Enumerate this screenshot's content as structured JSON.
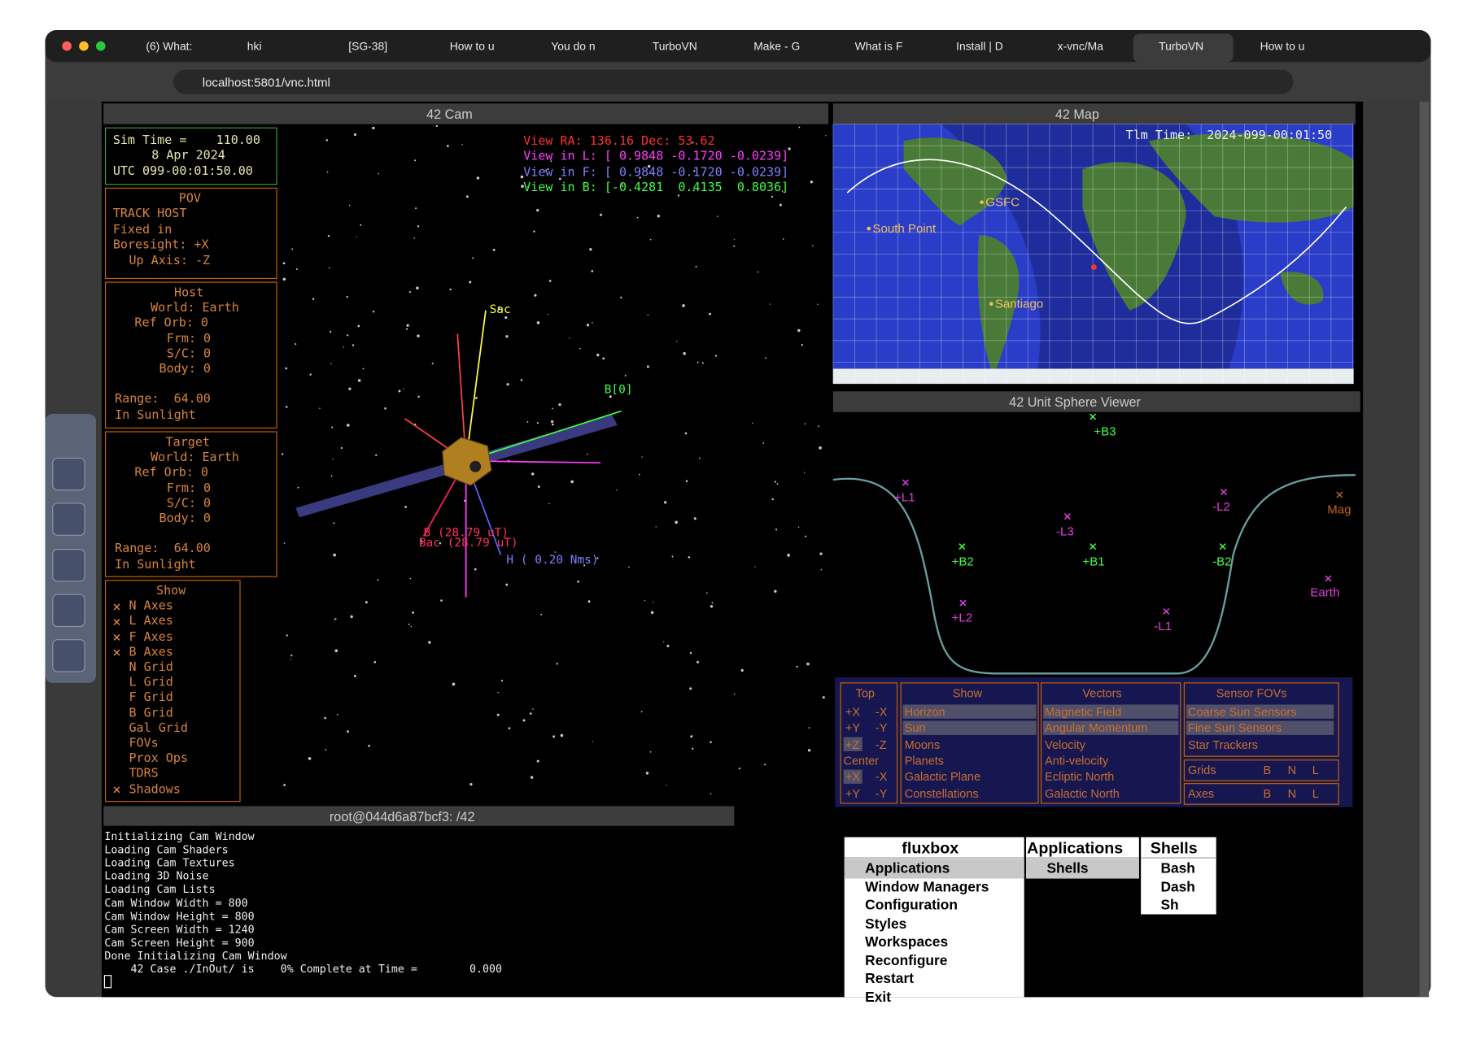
{
  "browser": {
    "tabs": [
      "(6) What:",
      "hki",
      "[SG-38]",
      "How to u",
      "You do n",
      "TurboVN",
      "Make - G",
      "What is F",
      "Install | D",
      "x-vnc/Ma",
      "TurboVN",
      "How to u"
    ],
    "url": "localhost:5801/vnc.html"
  },
  "cam": {
    "title": "42 Cam",
    "sim": [
      "Sim Time =    110.00",
      "8 Apr 2024",
      "UTC 099-00:01:50.00"
    ],
    "pov": [
      "POV",
      "TRACK HOST",
      "Fixed in",
      "Boresight: +X",
      "Up Axis: -Z"
    ],
    "host": [
      "Host",
      "World: Earth",
      "Ref Orb: 0",
      "Frm: 0",
      "S/C: 0",
      "Body: 0",
      "Range:  64.00",
      "In Sunlight"
    ],
    "target": [
      "Target",
      "World: Earth",
      "Ref Orb: 0",
      "Frm: 0",
      "S/C: 0",
      "Body: 0",
      "Range:  64.00",
      "In Sunlight"
    ],
    "show": [
      "Show",
      "N Axes",
      "L Axes",
      "F Axes",
      "B Axes",
      "N Grid",
      "L Grid",
      "F Grid",
      "B Grid",
      "Gal Grid",
      "FOVs",
      "Prox Ops",
      "TDRS",
      "Shadows"
    ],
    "view": [
      "View RA: 136.16 Dec: 53.62",
      "View in L: [ 0.9848 -0.1720 -0.0239]",
      "View in F: [ 0.9848 -0.1720 -0.0239]",
      "View in B: [-0.4281  0.4135  0.8036]"
    ],
    "labels": [
      "Sac",
      "B[0]",
      "B (28.79 uT)",
      "Bac (28.79 uT)",
      "H ( 0.20 Nms)"
    ]
  },
  "map": {
    "title": "42 Map",
    "tlm": "Tlm Time:  2024-099-00:01:50",
    "places": [
      "GSFC",
      "South Point",
      "Santiago"
    ]
  },
  "sphere": {
    "title": "42 Unit Sphere Viewer",
    "points": [
      "+B3",
      "+L1",
      "-L2",
      "-L3",
      "+B2",
      "+B1",
      "-B2",
      "Mag",
      "+L2",
      "-L1",
      "Earth"
    ]
  },
  "controls": {
    "top": {
      "title": "Top",
      "rows": [
        [
          "+X",
          "-X"
        ],
        [
          "+Y",
          "-Y"
        ],
        [
          "+Z",
          "-Z"
        ],
        [
          "Center"
        ],
        [
          "+X",
          "-X"
        ],
        [
          "+Y",
          "-Y"
        ]
      ]
    },
    "show": {
      "title": "Show",
      "items": [
        "Horizon",
        "Sun",
        "Moons",
        "Planets",
        "Galactic Plane",
        "Constellations"
      ]
    },
    "vectors": {
      "title": "Vectors",
      "items": [
        "Magnetic Field",
        "Angular Momentum",
        "Velocity",
        "Anti-velocity",
        "Ecliptic North",
        "Galactic North"
      ]
    },
    "sensors": {
      "title": "Sensor FOVs",
      "items": [
        "Coarse Sun Sensors",
        "Fine Sun Sensors",
        "Star Trackers"
      ],
      "grids": [
        "Grids",
        "B",
        "N",
        "L"
      ],
      "axes": [
        "Axes",
        "B",
        "N",
        "L"
      ]
    }
  },
  "terminal": {
    "title": "root@044d6a87bcf3: /42",
    "lines": [
      "Initializing Cam Window",
      "Loading Cam Shaders",
      "Loading Cam Textures",
      "Loading 3D Noise",
      "Loading Cam Lists",
      "Cam Window Width = 800",
      "Cam Window Height = 800",
      "Cam Screen Width = 1240",
      "Cam Screen Height = 900",
      "Done Initializing Cam Window",
      "    42 Case ./InOut/ is    0% Complete at Time =        0.000"
    ]
  },
  "menu": {
    "title": "fluxbox",
    "items": [
      "Applications",
      "Window Managers",
      "Configuration",
      "Styles",
      "Workspaces",
      "Reconfigure",
      "Restart",
      "Exit"
    ],
    "sub_title": "Applications",
    "sub_items": [
      "Shells"
    ],
    "shells_title": "Shells",
    "shells": [
      "Bash",
      "Dash",
      "Sh"
    ]
  }
}
